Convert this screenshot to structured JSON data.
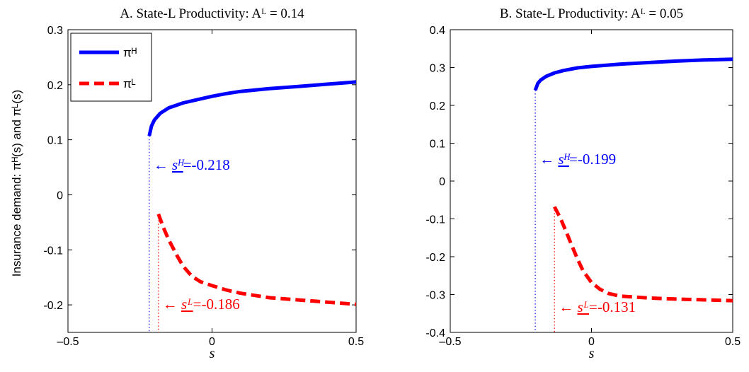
{
  "ylabel": "Insurance demand: πᴴ(s) and πᴸ(s)",
  "xlabel": "s",
  "colors": {
    "high": "#0000ff",
    "low": "#ff0000"
  },
  "legend": {
    "placement": "top-left",
    "entries": [
      "πᴴ",
      "πᴸ"
    ]
  },
  "chart_data": [
    {
      "type": "line",
      "title": "A. State-L Productivity: Aᴸ = 0.14",
      "xlim": [
        -0.5,
        0.5
      ],
      "ylim": [
        -0.25,
        0.3
      ],
      "xticks": [
        -0.5,
        0,
        0.5
      ],
      "xtick_labels": [
        "–0.5",
        "0",
        "0.5"
      ],
      "yticks": [
        -0.2,
        -0.1,
        0,
        0.1,
        0.2,
        0.3
      ],
      "ytick_labels": [
        "-0.2",
        "-0.1",
        "0",
        "0.1",
        "0.2",
        "0.3"
      ],
      "series": [
        {
          "name": "πᴴ",
          "style": "solid",
          "color": "#0000ff",
          "x": [
            -0.218,
            -0.21,
            -0.2,
            -0.18,
            -0.15,
            -0.1,
            -0.05,
            0,
            0.05,
            0.1,
            0.2,
            0.3,
            0.4,
            0.5
          ],
          "y": [
            0.107,
            0.125,
            0.136,
            0.148,
            0.158,
            0.167,
            0.173,
            0.179,
            0.184,
            0.188,
            0.193,
            0.197,
            0.201,
            0.205
          ]
        },
        {
          "name": "πᴸ",
          "style": "dashed",
          "color": "#ff0000",
          "x": [
            -0.186,
            -0.17,
            -0.15,
            -0.12,
            -0.1,
            -0.07,
            -0.04,
            0,
            0.05,
            0.1,
            0.2,
            0.3,
            0.4,
            0.5
          ],
          "y": [
            -0.035,
            -0.058,
            -0.082,
            -0.112,
            -0.13,
            -0.148,
            -0.158,
            -0.165,
            -0.173,
            -0.179,
            -0.187,
            -0.191,
            -0.195,
            -0.199
          ]
        }
      ],
      "annotations": [
        {
          "label": "sᴴ",
          "value": "-0.218",
          "x": -0.218,
          "color": "#0000ff"
        },
        {
          "label": "sᴸ",
          "value": "-0.186",
          "x": -0.186,
          "color": "#ff0000"
        }
      ]
    },
    {
      "type": "line",
      "title": "B. State-L Productivity: Aᴸ = 0.05",
      "xlim": [
        -0.5,
        0.5
      ],
      "ylim": [
        -0.4,
        0.4
      ],
      "xticks": [
        -0.5,
        0,
        0.5
      ],
      "xtick_labels": [
        "–0.5",
        "0",
        "0.5"
      ],
      "yticks": [
        -0.4,
        -0.3,
        -0.2,
        -0.1,
        0,
        0.1,
        0.2,
        0.3,
        0.4
      ],
      "ytick_labels": [
        "-0.4",
        "-0.3",
        "-0.2",
        "-0.1",
        "0",
        "0.1",
        "0.2",
        "0.3",
        "0.4"
      ],
      "series": [
        {
          "name": "πᴴ",
          "style": "solid",
          "color": "#0000ff",
          "x": [
            -0.199,
            -0.19,
            -0.18,
            -0.16,
            -0.13,
            -0.1,
            -0.05,
            0,
            0.1,
            0.2,
            0.3,
            0.4,
            0.5
          ],
          "y": [
            0.24,
            0.258,
            0.267,
            0.277,
            0.286,
            0.292,
            0.299,
            0.303,
            0.309,
            0.313,
            0.317,
            0.32,
            0.322
          ]
        },
        {
          "name": "πᴸ",
          "style": "dashed",
          "color": "#ff0000",
          "x": [
            -0.131,
            -0.11,
            -0.09,
            -0.07,
            -0.05,
            -0.03,
            0,
            0.03,
            0.06,
            0.1,
            0.2,
            0.3,
            0.4,
            0.5
          ],
          "y": [
            -0.068,
            -0.098,
            -0.133,
            -0.17,
            -0.205,
            -0.237,
            -0.268,
            -0.286,
            -0.297,
            -0.304,
            -0.309,
            -0.312,
            -0.314,
            -0.316
          ]
        }
      ],
      "annotations": [
        {
          "label": "sᴴ",
          "value": "-0.199",
          "x": -0.199,
          "color": "#0000ff"
        },
        {
          "label": "sᴸ",
          "value": "-0.131",
          "x": -0.131,
          "color": "#ff0000"
        }
      ]
    }
  ]
}
